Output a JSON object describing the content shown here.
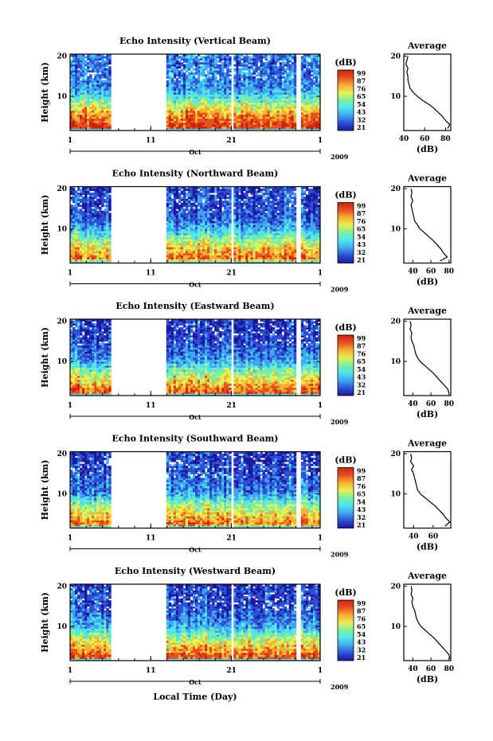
{
  "figure": {
    "xlabel": "Local Time (Day)",
    "month_label": "Oct",
    "year_label": "2009",
    "colorbar_unit": "(dB)",
    "colorbar_ticks": [
      "99",
      "87",
      "76",
      "65",
      "54",
      "43",
      "32",
      "21"
    ],
    "profile_title": "Average",
    "profile_xlabel": "(dB)",
    "colormap": [
      "#1a1aa0",
      "#2e4fd6",
      "#3fa7ee",
      "#4fe4f0",
      "#7af0a0",
      "#e8f050",
      "#f5b030",
      "#e85020",
      "#d02010"
    ]
  },
  "chart_data": [
    {
      "type": "heatmap",
      "title": "Echo Intensity (Vertical Beam)",
      "ylabel": "Height (km)",
      "x_ticks": [
        "1",
        "11",
        "21",
        "1"
      ],
      "y_ticks": [
        "20",
        "10"
      ],
      "xlim": [
        1,
        32
      ],
      "ylim": [
        1.5,
        20.5
      ],
      "data_gaps_days": [
        [
          6,
          13
        ],
        [
          21,
          21.3
        ],
        [
          29,
          29.5
        ]
      ],
      "colorbar_range_db": [
        21,
        99
      ],
      "profile": {
        "title": "Average",
        "xlabel": "(dB)",
        "x_ticks": [
          "40",
          "60",
          "80"
        ],
        "xlim": [
          40,
          85
        ],
        "heights_km": [
          2,
          3,
          4,
          5,
          6,
          7,
          8,
          9,
          10,
          11,
          12,
          13,
          14,
          15,
          16,
          17,
          18,
          19,
          20
        ],
        "values_db": [
          82,
          84,
          80,
          77,
          73,
          69,
          64,
          58,
          53,
          49,
          46,
          45,
          44,
          44,
          43,
          44,
          42,
          43,
          44
        ]
      }
    },
    {
      "type": "heatmap",
      "title": "Echo Intensity (Northward Beam)",
      "ylabel": "Height (km)",
      "x_ticks": [
        "1",
        "11",
        "21",
        "1"
      ],
      "y_ticks": [
        "20",
        "10"
      ],
      "xlim": [
        1,
        32
      ],
      "ylim": [
        1.5,
        20.5
      ],
      "data_gaps_days": [
        [
          6,
          13
        ],
        [
          21,
          21.3
        ],
        [
          29,
          29.5
        ]
      ],
      "colorbar_range_db": [
        21,
        99
      ],
      "profile": {
        "title": "Average",
        "xlabel": "(dB)",
        "x_ticks": [
          "40",
          "60",
          "80"
        ],
        "xlim": [
          30,
          82
        ],
        "heights_km": [
          2,
          3,
          4,
          5,
          6,
          7,
          8,
          9,
          10,
          11,
          12,
          13,
          14,
          15,
          16,
          17,
          18,
          19,
          20
        ],
        "values_db": [
          70,
          78,
          74,
          71,
          67,
          63,
          58,
          53,
          48,
          45,
          42,
          41,
          40,
          39,
          38,
          40,
          38,
          39,
          38
        ]
      }
    },
    {
      "type": "heatmap",
      "title": "Echo Intensity (Eastward Beam)",
      "ylabel": "Height (km)",
      "x_ticks": [
        "1",
        "11",
        "21",
        "1"
      ],
      "y_ticks": [
        "20",
        "10"
      ],
      "xlim": [
        1,
        32
      ],
      "ylim": [
        1.5,
        20.5
      ],
      "data_gaps_days": [
        [
          6,
          13
        ],
        [
          21,
          21.3
        ],
        [
          29,
          29.5
        ]
      ],
      "colorbar_range_db": [
        21,
        99
      ],
      "profile": {
        "title": "Average",
        "xlabel": "(dB)",
        "x_ticks": [
          "40",
          "60",
          "80"
        ],
        "xlim": [
          30,
          82
        ],
        "heights_km": [
          2,
          3,
          4,
          5,
          6,
          7,
          8,
          9,
          10,
          11,
          12,
          13,
          14,
          15,
          16,
          17,
          18,
          19,
          20
        ],
        "values_db": [
          80,
          79,
          75,
          71,
          67,
          63,
          58,
          53,
          48,
          45,
          43,
          42,
          41,
          39,
          38,
          39,
          37,
          38,
          37
        ]
      }
    },
    {
      "type": "heatmap",
      "title": "Echo Intensity (Southward Beam)",
      "ylabel": "Height (km)",
      "x_ticks": [
        "1",
        "11",
        "21",
        "1"
      ],
      "y_ticks": [
        "20",
        "10"
      ],
      "xlim": [
        1,
        32
      ],
      "ylim": [
        1.5,
        20.5
      ],
      "data_gaps_days": [
        [
          6,
          13
        ],
        [
          21,
          21.3
        ],
        [
          29,
          29.5
        ]
      ],
      "colorbar_range_db": [
        21,
        99
      ],
      "profile": {
        "title": "Average",
        "xlabel": "(dB)",
        "x_ticks": [
          "40",
          "60"
        ],
        "xlim": [
          30,
          78
        ],
        "heights_km": [
          2,
          3,
          4,
          5,
          6,
          7,
          8,
          9,
          10,
          11,
          12,
          13,
          14,
          15,
          16,
          17,
          18,
          19,
          20
        ],
        "values_db": [
          72,
          77,
          73,
          70,
          66,
          62,
          57,
          52,
          47,
          44,
          43,
          42,
          41,
          40,
          38,
          40,
          37,
          38,
          37
        ]
      }
    },
    {
      "type": "heatmap",
      "title": "Echo Intensity (Westward Beam)",
      "ylabel": "Height (km)",
      "x_ticks": [
        "1",
        "11",
        "21",
        "1"
      ],
      "y_ticks": [
        "20",
        "10"
      ],
      "xlim": [
        1,
        32
      ],
      "ylim": [
        1.5,
        20.5
      ],
      "data_gaps_days": [
        [
          6,
          13
        ],
        [
          21,
          21.3
        ],
        [
          29,
          29.5
        ]
      ],
      "colorbar_range_db": [
        21,
        99
      ],
      "profile": {
        "title": "Average",
        "xlabel": "(dB)",
        "x_ticks": [
          "40",
          "60",
          "80"
        ],
        "xlim": [
          30,
          82
        ],
        "heights_km": [
          2,
          3,
          4,
          5,
          6,
          7,
          8,
          9,
          10,
          11,
          12,
          13,
          14,
          15,
          16,
          17,
          18,
          19,
          20
        ],
        "values_db": [
          81,
          80,
          76,
          72,
          68,
          64,
          59,
          54,
          49,
          46,
          44,
          43,
          42,
          40,
          39,
          40,
          38,
          39,
          38
        ]
      }
    }
  ]
}
